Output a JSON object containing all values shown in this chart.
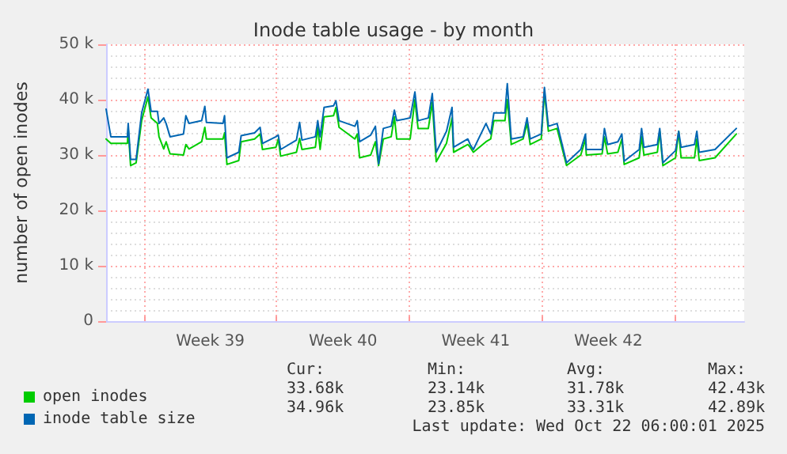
{
  "chart_data": {
    "type": "line",
    "title": "Inode table usage - by month",
    "ylabel": "number of open inodes",
    "xlim": [
      "2025-09-19T00:00",
      "2025-10-22T16:00"
    ],
    "xticks": [
      {
        "value": "2025-09-21",
        "label": null
      },
      {
        "value": "2025-09-24T12:00",
        "label": "Week 39"
      },
      {
        "value": "2025-09-28",
        "label": null
      },
      {
        "value": "2025-10-01T12:00",
        "label": "Week 40"
      },
      {
        "value": "2025-10-05",
        "label": null
      },
      {
        "value": "2025-10-08T12:00",
        "label": "Week 41"
      },
      {
        "value": "2025-10-12",
        "label": null
      },
      {
        "value": "2025-10-15T12:00",
        "label": "Week 42"
      },
      {
        "value": "2025-10-19",
        "label": null
      }
    ],
    "ylim": [
      0,
      50000
    ],
    "yticks": [
      0,
      {
        "value": 10000,
        "label": "10 k"
      },
      {
        "value": 20000,
        "label": "20 k"
      },
      {
        "value": 30000,
        "label": "30 k"
      },
      {
        "value": 40000,
        "label": "40 k"
      },
      {
        "value": 50000,
        "label": "50 k"
      }
    ],
    "grid": true,
    "legend": "bottom left",
    "marker": "none",
    "line_style": "solid",
    "x": [
      "2025-09-19T00:00",
      "2025-09-19T06:00",
      "2025-09-20T03:00",
      "2025-09-20T04:00",
      "2025-09-20T07:00",
      "2025-09-20T14:00",
      "2025-09-20T21:00",
      "2025-09-21T05:00",
      "2025-09-21T09:00",
      "2025-09-21T17:00",
      "2025-09-21T19:00",
      "2025-09-22T01:00",
      "2025-09-22T04:00",
      "2025-09-22T09:00",
      "2025-09-23T02:00",
      "2025-09-23T05:00",
      "2025-09-23T09:00",
      "2025-09-24T01:00",
      "2025-09-24T05:00",
      "2025-09-24T07:00",
      "2025-09-25T04:00",
      "2025-09-25T06:00",
      "2025-09-25T09:00",
      "2025-09-26T00:00",
      "2025-09-26T03:00",
      "2025-09-26T20:00",
      "2025-09-27T03:00",
      "2025-09-27T06:00",
      "2025-09-27T23:00",
      "2025-09-28T02:00",
      "2025-09-28T05:00",
      "2025-09-29T01:00",
      "2025-09-29T05:00",
      "2025-09-29T08:00",
      "2025-09-30T01:00",
      "2025-09-30T04:00",
      "2025-09-30T07:00",
      "2025-09-30T12:00",
      "2025-10-01T00:00",
      "2025-10-01T03:00",
      "2025-10-01T07:00",
      "2025-10-02T03:00",
      "2025-10-02T06:00",
      "2025-10-02T09:00",
      "2025-10-02T23:00",
      "2025-10-03T05:00",
      "2025-10-03T09:00",
      "2025-10-03T15:00",
      "2025-10-04T01:00",
      "2025-10-04T05:00",
      "2025-10-04T08:00",
      "2025-10-05T01:00",
      "2025-10-05T07:00",
      "2025-10-05T11:00",
      "2025-10-06T00:00",
      "2025-10-06T05:00",
      "2025-10-06T10:00",
      "2025-10-06T23:00",
      "2025-10-07T06:00",
      "2025-10-07T08:00",
      "2025-10-08T02:00",
      "2025-10-08T05:00",
      "2025-10-08T09:00",
      "2025-10-09T01:00",
      "2025-10-09T07:00",
      "2025-10-09T11:00",
      "2025-10-10T01:00",
      "2025-10-10T04:00",
      "2025-10-10T09:00",
      "2025-10-11T00:00",
      "2025-10-11T05:00",
      "2025-10-11T09:00",
      "2025-10-11T23:00",
      "2025-10-12T03:00",
      "2025-10-12T08:00",
      "2025-10-12T19:00",
      "2025-10-13T07:00",
      "2025-10-14T01:00",
      "2025-10-14T07:00",
      "2025-10-14T08:00",
      "2025-10-15T04:00",
      "2025-10-15T07:00",
      "2025-10-15T11:00",
      "2025-10-16T00:00",
      "2025-10-16T05:00",
      "2025-10-16T08:00",
      "2025-10-17T03:00",
      "2025-10-17T06:00",
      "2025-10-17T09:00",
      "2025-10-18T02:00",
      "2025-10-18T05:00",
      "2025-10-18T09:00",
      "2025-10-19T01:00",
      "2025-10-19T05:00",
      "2025-10-19T08:00",
      "2025-10-20T01:00",
      "2025-10-20T04:00",
      "2025-10-20T07:00",
      "2025-10-21T03:00",
      "2025-10-22T06:00"
    ],
    "series": [
      {
        "name": "open inodes",
        "color": "#00cc00",
        "values": [
          32900,
          32100,
          32100,
          34800,
          28100,
          28600,
          36200,
          40500,
          36700,
          35700,
          33300,
          31100,
          32400,
          30200,
          30000,
          31900,
          31100,
          32400,
          35000,
          32900,
          32900,
          34000,
          28300,
          29000,
          32400,
          32900,
          33800,
          31000,
          31400,
          32900,
          29800,
          30500,
          33000,
          31000,
          31400,
          35000,
          31000,
          36900,
          37100,
          38600,
          35000,
          32900,
          33800,
          29500,
          30000,
          32400,
          28100,
          32900,
          33300,
          36900,
          32900,
          32900,
          40000,
          34800,
          34800,
          39500,
          28800,
          32100,
          36700,
          30500,
          31900,
          31400,
          30500,
          32400,
          32900,
          36200,
          36200,
          40000,
          31900,
          32900,
          35700,
          31900,
          32900,
          41400,
          34300,
          34800,
          28100,
          30000,
          32900,
          30000,
          30200,
          33300,
          30200,
          30500,
          32900,
          28300,
          29500,
          33300,
          30000,
          30500,
          34300,
          28100,
          29500,
          34300,
          29500,
          29500,
          32900,
          29000,
          29500,
          33800
        ]
      },
      {
        "name": "inode table size",
        "color": "#0066b3",
        "values": [
          38300,
          33300,
          33300,
          35700,
          29200,
          29200,
          37600,
          41900,
          37900,
          37900,
          35700,
          36700,
          35700,
          33300,
          33800,
          37100,
          35700,
          36200,
          38800,
          35900,
          35700,
          37100,
          29500,
          30500,
          33500,
          34000,
          35000,
          32100,
          33300,
          33600,
          31000,
          32700,
          35900,
          32700,
          33300,
          36200,
          33300,
          38600,
          38900,
          39800,
          36200,
          35200,
          36200,
          32400,
          33600,
          35200,
          28400,
          34800,
          35200,
          38100,
          36200,
          36700,
          41400,
          36200,
          36700,
          41100,
          30500,
          34300,
          38600,
          31400,
          32900,
          31900,
          31000,
          35700,
          33800,
          37600,
          37600,
          42900,
          32900,
          33300,
          36700,
          32900,
          33800,
          42200,
          35200,
          35700,
          28600,
          31000,
          33800,
          31000,
          31000,
          34800,
          31900,
          32400,
          33800,
          28900,
          31000,
          34800,
          31400,
          31900,
          34800,
          28600,
          30800,
          34300,
          31400,
          31900,
          34300,
          30500,
          31000,
          34800
        ]
      }
    ],
    "annotations": [
      "Cur:",
      "Min:",
      "Avg:",
      "Max:",
      "33.68k",
      "23.14k",
      "31.78k",
      "42.43k",
      "34.96k",
      "23.85k",
      "33.31k",
      "42.89k",
      "Last update: Wed Oct 22 06:00:01 2025"
    ]
  }
}
